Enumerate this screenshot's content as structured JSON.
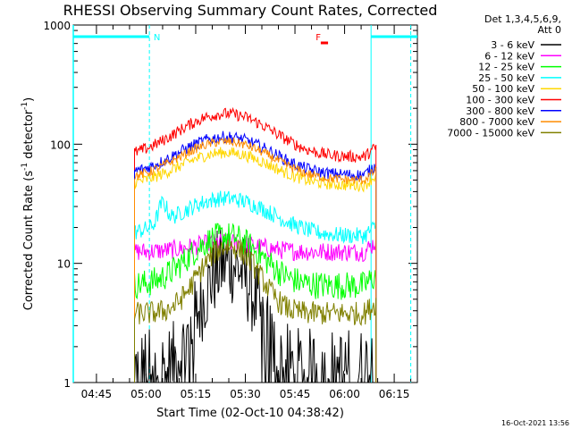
{
  "chart_data": {
    "type": "line",
    "title": "RHESSI Observing Summary Count Rates, Corrected",
    "xlabel": "Start Time (02-Oct-10 04:38:42)",
    "ylabel_main": "Corrected Count Rate (s",
    "ylabel_sup1": "-1",
    "ylabel_mid": " detector",
    "ylabel_sup2": "-1",
    "ylabel_end": ")",
    "yscale": "log",
    "ylim": [
      1,
      1000
    ],
    "xlim_minutes": [
      -7,
      97
    ],
    "y_ticks": [
      {
        "value": 1,
        "label": "1"
      },
      {
        "value": 10,
        "label": "10"
      },
      {
        "value": 100,
        "label": "100"
      },
      {
        "value": 1000,
        "label": "1000"
      }
    ],
    "x_ticks": [
      {
        "minute": 0,
        "label": "04:45"
      },
      {
        "minute": 15,
        "label": "05:00"
      },
      {
        "minute": 30,
        "label": "05:15"
      },
      {
        "minute": 45,
        "label": "05:30"
      },
      {
        "minute": 60,
        "label": "05:45"
      },
      {
        "minute": 75,
        "label": "06:00"
      },
      {
        "minute": 90,
        "label": "06:15"
      }
    ],
    "legend_header": [
      "Det 1,3,4,5,6,9,",
      "Att 0"
    ],
    "series": [
      {
        "name": "3 - 6 keV",
        "color": "#000000",
        "base": 1.3,
        "peak": 10,
        "mid": 40,
        "width": 6,
        "noise": 0.35
      },
      {
        "name": "6 - 12 keV",
        "color": "#ff00ff",
        "base": 12.5,
        "peak": 15,
        "mid": 39,
        "width": 9,
        "noise": 0.08
      },
      {
        "name": "12 - 25 keV",
        "color": "#00ff00",
        "base": 6.5,
        "peak": 17,
        "mid": 39,
        "width": 9,
        "noise": 0.12
      },
      {
        "name": "25 - 50 keV",
        "color": "#00ffff",
        "base": 17,
        "peak": 35,
        "mid": 39,
        "width": 12,
        "noise": 0.07
      },
      {
        "name": "50 - 100 keV",
        "color": "#ffd700",
        "base": 45,
        "peak": 85,
        "mid": 39,
        "width": 12,
        "noise": 0.05
      },
      {
        "name": "100 - 300 keV",
        "color": "#ff0000",
        "base": 78,
        "peak": 180,
        "mid": 39,
        "width": 12,
        "noise": 0.05
      },
      {
        "name": "300 - 800 keV",
        "color": "#0000ff",
        "base": 55,
        "peak": 115,
        "mid": 39,
        "width": 12,
        "noise": 0.05
      },
      {
        "name": "800 - 7000 keV",
        "color": "#ff8c00",
        "base": 50,
        "peak": 105,
        "mid": 39,
        "width": 12,
        "noise": 0.04
      },
      {
        "name": "7000 - 15000 keV",
        "color": "#808000",
        "base": 3.8,
        "peak": 14,
        "mid": 40,
        "width": 7,
        "noise": 0.1
      }
    ],
    "data_start_minute": 11.5,
    "data_end_minute": 84.5,
    "annotations": [
      {
        "text": "N",
        "color": "#00ffff",
        "minute": 17
      },
      {
        "text": "F",
        "color": "#ff0000",
        "minute": 66
      }
    ],
    "timestamp": "16-Oct-2021 13:56"
  }
}
